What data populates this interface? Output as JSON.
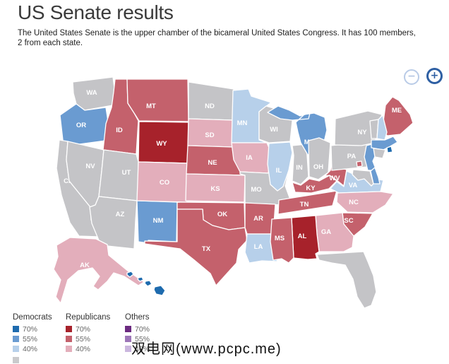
{
  "page": {
    "title": "US Senate results",
    "description_line1": "The United States Senate is the upper chamber of the bicameral United States Congress. It has 100 members,",
    "description_line2": "2 from each state.",
    "watermark": "双电网(www.pcpc.me)"
  },
  "zoom_controls": {
    "zoom_out": "−",
    "zoom_in": "+"
  },
  "colors": {
    "democrat": {
      "p70": "#1e6bae",
      "p55": "#6a9bd1",
      "p40": "#b7d0ea"
    },
    "republican": {
      "p70": "#a7222b",
      "p55": "#c4616c",
      "p40": "#e3aebb"
    },
    "other": {
      "p70": "#6b2a80",
      "p55": "#9d76b8",
      "p40": "#cbb7de"
    },
    "no_election": "#c4c4c7",
    "state_border": "#ffffff",
    "state_label": "#ffffff"
  },
  "legend": {
    "partial_row_color": "#cacacc",
    "groups": [
      {
        "label": "Democrats",
        "entries": [
          {
            "pct": "70%",
            "color": "#1e6bae"
          },
          {
            "pct": "55%",
            "color": "#6a9bd1"
          },
          {
            "pct": "40%",
            "color": "#b7d0ea"
          }
        ]
      },
      {
        "label": "Republicans",
        "entries": [
          {
            "pct": "70%",
            "color": "#a7222b"
          },
          {
            "pct": "55%",
            "color": "#c4616c"
          },
          {
            "pct": "40%",
            "color": "#e3aebb"
          }
        ]
      },
      {
        "label": "Others",
        "entries": [
          {
            "pct": "70%",
            "color": "#6b2a80"
          },
          {
            "pct": "55%",
            "color": "#9d76b8"
          },
          {
            "pct": "40%",
            "color": "#cbb7de"
          }
        ]
      }
    ]
  },
  "map": {
    "type": "choropleth",
    "states": [
      {
        "id": "WA",
        "label": "WA",
        "party": "none",
        "pct": null
      },
      {
        "id": "OR",
        "label": "OR",
        "party": "democrat",
        "pct": 55
      },
      {
        "id": "CA",
        "label": "CA",
        "party": "none",
        "pct": null
      },
      {
        "id": "NV",
        "label": "NV",
        "party": "none",
        "pct": null
      },
      {
        "id": "ID",
        "label": "ID",
        "party": "republican",
        "pct": 55
      },
      {
        "id": "MT",
        "label": "MT",
        "party": "republican",
        "pct": 55
      },
      {
        "id": "WY",
        "label": "WY",
        "party": "republican",
        "pct": 70
      },
      {
        "id": "UT",
        "label": "UT",
        "party": "none",
        "pct": null
      },
      {
        "id": "AZ",
        "label": "AZ",
        "party": "none",
        "pct": null
      },
      {
        "id": "NM",
        "label": "NM",
        "party": "democrat",
        "pct": 55
      },
      {
        "id": "CO",
        "label": "CO",
        "party": "republican",
        "pct": 40
      },
      {
        "id": "ND",
        "label": "ND",
        "party": "none",
        "pct": null
      },
      {
        "id": "SD",
        "label": "SD",
        "party": "republican",
        "pct": 40
      },
      {
        "id": "NE",
        "label": "NE",
        "party": "republican",
        "pct": 55
      },
      {
        "id": "KS",
        "label": "KS",
        "party": "republican",
        "pct": 40
      },
      {
        "id": "OK",
        "label": "OK",
        "party": "republican",
        "pct": 55
      },
      {
        "id": "TX",
        "label": "TX",
        "party": "republican",
        "pct": 55
      },
      {
        "id": "MN",
        "label": "MN",
        "party": "democrat",
        "pct": 40
      },
      {
        "id": "IA",
        "label": "IA",
        "party": "republican",
        "pct": 40
      },
      {
        "id": "MO",
        "label": "MO",
        "party": "none",
        "pct": null
      },
      {
        "id": "AR",
        "label": "AR",
        "party": "republican",
        "pct": 55
      },
      {
        "id": "LA",
        "label": "LA",
        "party": "democrat",
        "pct": 40
      },
      {
        "id": "WI",
        "label": "WI",
        "party": "none",
        "pct": null
      },
      {
        "id": "IL",
        "label": "IL",
        "party": "democrat",
        "pct": 40
      },
      {
        "id": "IN",
        "label": "IN",
        "party": "none",
        "pct": null
      },
      {
        "id": "MI",
        "label": "MI",
        "party": "democrat",
        "pct": 55
      },
      {
        "id": "OH",
        "label": "OH",
        "party": "none",
        "pct": null
      },
      {
        "id": "KY",
        "label": "KY",
        "party": "republican",
        "pct": 55
      },
      {
        "id": "TN",
        "label": "TN",
        "party": "republican",
        "pct": 55
      },
      {
        "id": "WV",
        "label": "WV",
        "party": "republican",
        "pct": 55
      },
      {
        "id": "VA",
        "label": "VA",
        "party": "democrat",
        "pct": 40
      },
      {
        "id": "NC",
        "label": "NC",
        "party": "republican",
        "pct": 40
      },
      {
        "id": "SC",
        "label": "SC",
        "party": "republican",
        "pct": 55
      },
      {
        "id": "GA",
        "label": "GA",
        "party": "republican",
        "pct": 40
      },
      {
        "id": "AL",
        "label": "AL",
        "party": "republican",
        "pct": 70
      },
      {
        "id": "MS",
        "label": "MS",
        "party": "republican",
        "pct": 55
      },
      {
        "id": "FL",
        "label": "FL",
        "party": "none",
        "pct": null
      },
      {
        "id": "PA",
        "label": "PA",
        "party": "none",
        "pct": null
      },
      {
        "id": "NY",
        "label": "NY",
        "party": "none",
        "pct": null
      },
      {
        "id": "NJ",
        "label": "",
        "party": "democrat",
        "pct": 55
      },
      {
        "id": "ME",
        "label": "ME",
        "party": "republican",
        "pct": 55
      },
      {
        "id": "VT",
        "label": "",
        "party": "none",
        "pct": null
      },
      {
        "id": "NH",
        "label": "",
        "party": "democrat",
        "pct": 40
      },
      {
        "id": "MA",
        "label": "",
        "party": "democrat",
        "pct": 55
      },
      {
        "id": "RI",
        "label": "",
        "party": "democrat",
        "pct": 70
      },
      {
        "id": "CT",
        "label": "",
        "party": "none",
        "pct": null
      },
      {
        "id": "MD",
        "label": "",
        "party": "none",
        "pct": null
      },
      {
        "id": "DE",
        "label": "",
        "party": "democrat",
        "pct": 55
      },
      {
        "id": "DC",
        "label": "",
        "party": "republican",
        "pct": 55
      },
      {
        "id": "AK",
        "label": "AK",
        "party": "republican",
        "pct": 40
      },
      {
        "id": "HI",
        "label": "",
        "party": "democrat",
        "pct": 70
      }
    ]
  }
}
